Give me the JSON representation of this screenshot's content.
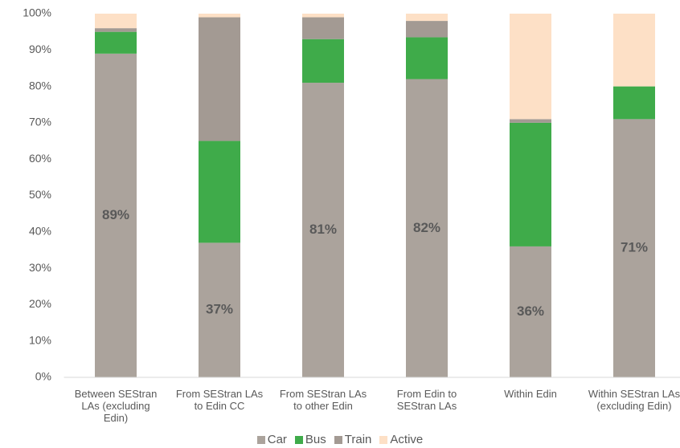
{
  "chart_data": {
    "type": "stacked_bar",
    "categories": [
      "Between SEStran LAs (excluding Edin)",
      "From SEStran LAs to Edin CC",
      "From SEStran LAs to other Edin",
      "From Edin to SEStran LAs",
      "Within Edin",
      "Within SEStran LAs (excluding Edin)"
    ],
    "series": [
      {
        "name": "Car",
        "color": "#aba39c",
        "values": [
          89,
          37,
          81,
          82,
          36,
          71
        ],
        "value_labels": [
          "89%",
          "37%",
          "81%",
          "82%",
          "36%",
          "71%"
        ]
      },
      {
        "name": "Bus",
        "color": "#3fab4a",
        "values": [
          6,
          28,
          12,
          11.5,
          34,
          9
        ]
      },
      {
        "name": "Train",
        "color": "#a39a93",
        "values": [
          1,
          34,
          6,
          4.5,
          1,
          0
        ]
      },
      {
        "name": "Active",
        "color": "#fde0c6",
        "values": [
          4,
          1,
          1,
          2,
          29,
          20
        ]
      }
    ],
    "ylim": [
      0,
      100
    ],
    "yticks": [
      {
        "value": 0,
        "label": "0%"
      },
      {
        "value": 10,
        "label": "10%"
      },
      {
        "value": 20,
        "label": "20%"
      },
      {
        "value": 30,
        "label": "30%"
      },
      {
        "value": 40,
        "label": "40%"
      },
      {
        "value": 50,
        "label": "50%"
      },
      {
        "value": 60,
        "label": "60%"
      },
      {
        "value": 70,
        "label": "70%"
      },
      {
        "value": 80,
        "label": "80%"
      },
      {
        "value": 90,
        "label": "90%"
      },
      {
        "value": 100,
        "label": "100%"
      }
    ],
    "grid": false,
    "legend": "bottom"
  }
}
